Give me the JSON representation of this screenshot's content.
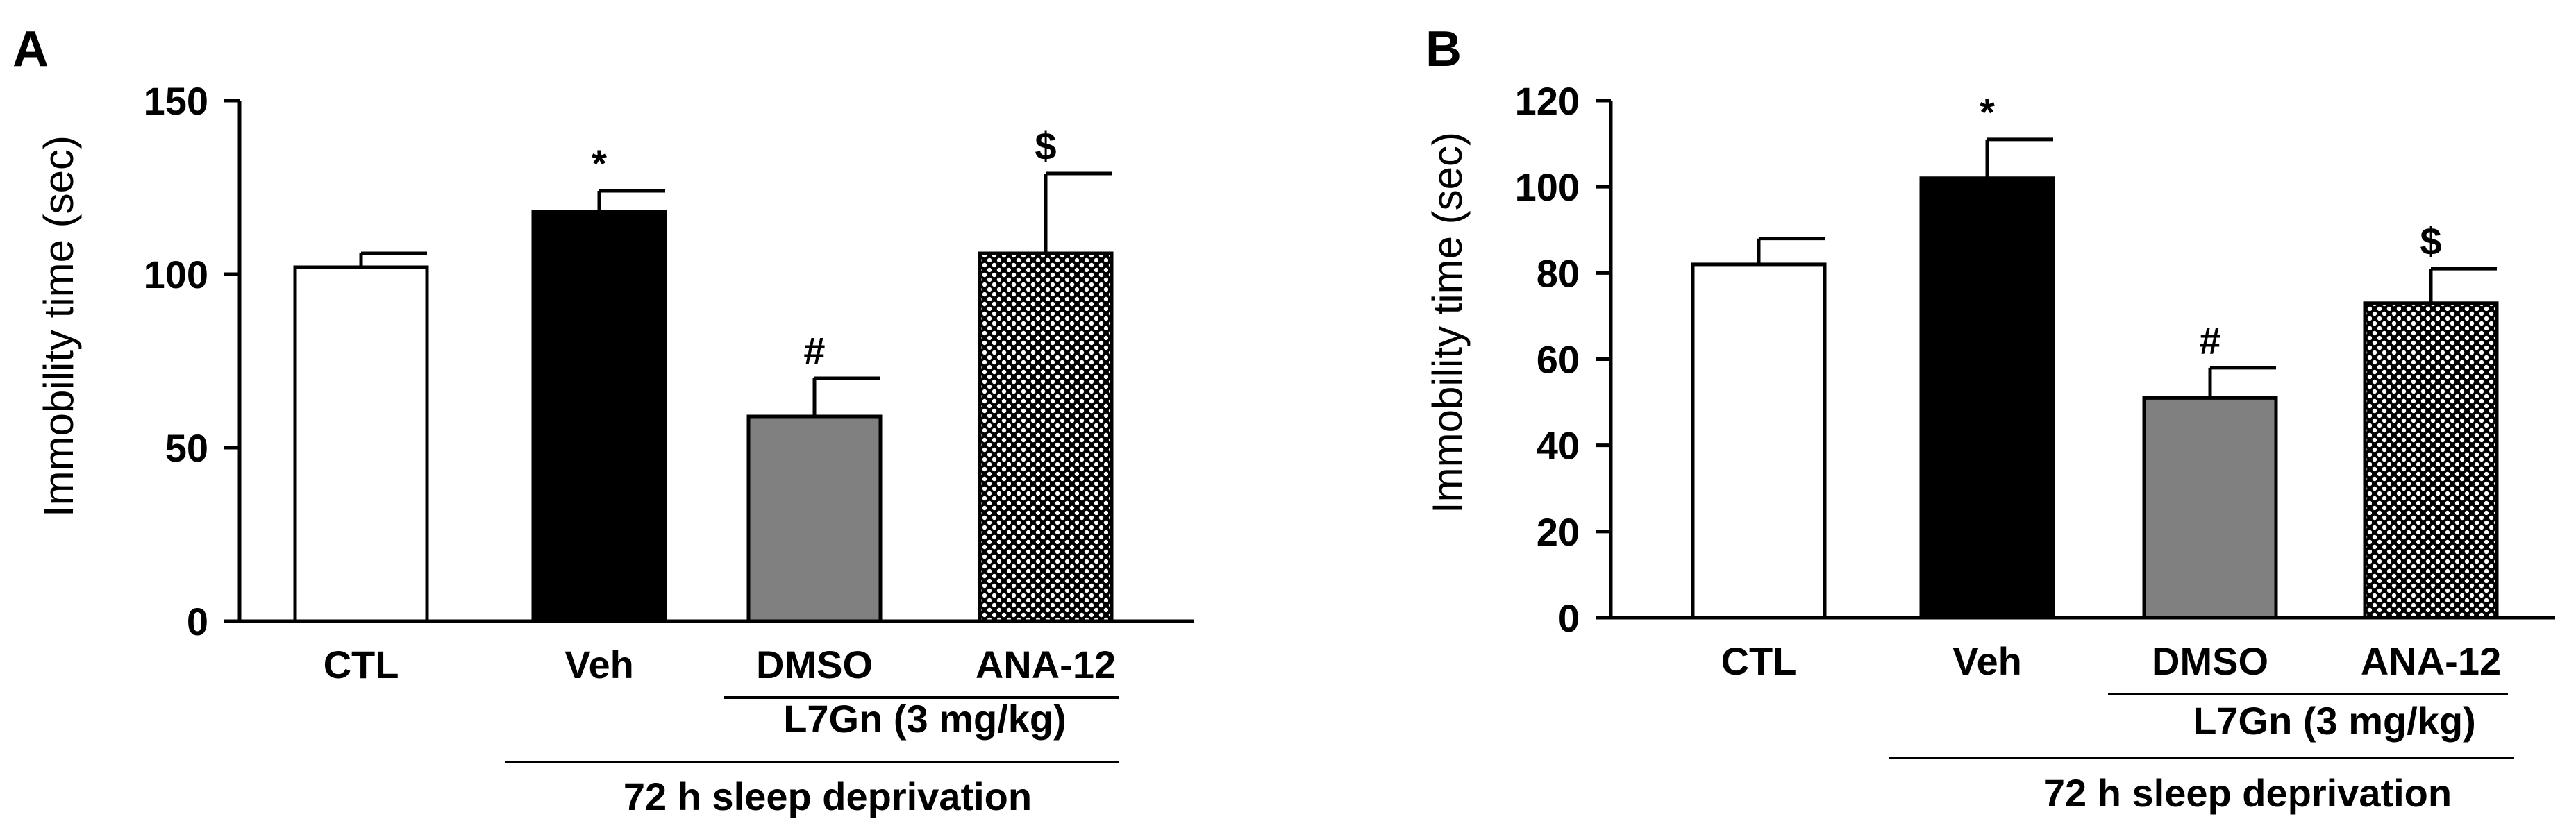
{
  "chart_data": [
    {
      "panel": "A",
      "type": "bar",
      "ylabel": "Immobility time (sec)",
      "ylim": [
        0,
        150
      ],
      "yticks": [
        0,
        50,
        100,
        150
      ],
      "categories": [
        "CTL",
        "Veh",
        "DMSO",
        "ANA-12"
      ],
      "values": [
        102,
        118,
        59,
        106
      ],
      "errors": [
        4,
        6,
        11,
        23
      ],
      "annotations": [
        "",
        "*",
        "#",
        "$"
      ],
      "colors": [
        "#ffffff",
        "#000000",
        "#808080",
        "pattern"
      ],
      "subgroup_label": "L7Gn (3 mg/kg)",
      "group_label": "72 h sleep deprivation"
    },
    {
      "panel": "B",
      "type": "bar",
      "ylabel": "Immobility time (sec)",
      "ylim": [
        0,
        120
      ],
      "yticks": [
        0,
        20,
        40,
        60,
        80,
        100,
        120
      ],
      "categories": [
        "CTL",
        "Veh",
        "DMSO",
        "ANA-12"
      ],
      "values": [
        82,
        102,
        51,
        73
      ],
      "errors": [
        6,
        9,
        7,
        8
      ],
      "annotations": [
        "",
        "*",
        "#",
        "$"
      ],
      "colors": [
        "#ffffff",
        "#000000",
        "#808080",
        "pattern"
      ],
      "subgroup_label": "L7Gn (3 mg/kg)",
      "group_label": "72 h sleep deprivation"
    }
  ]
}
